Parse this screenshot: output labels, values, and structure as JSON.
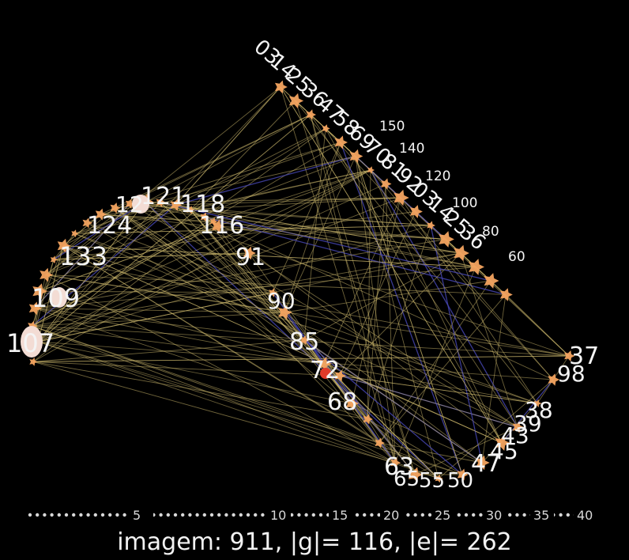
{
  "caption": {
    "prefix": "imagem: ",
    "image_number": "911",
    "g_label": ", |g|= ",
    "g_value": "116",
    "e_label": ", |e|= ",
    "e_value": "262"
  },
  "scale_ticks": [
    "5",
    "10",
    "15",
    "20",
    "25",
    "30",
    "35",
    "40"
  ],
  "node_labels": [
    "107",
    "109",
    "133",
    "124",
    "12",
    "121",
    "118",
    "116",
    "91",
    "90",
    "85",
    "72",
    "68",
    "63",
    "65",
    "55",
    "50",
    "47",
    "45",
    "43",
    "39",
    "38",
    "37",
    "98"
  ],
  "time_labels": [
    "150",
    "140",
    "120",
    "100",
    "80",
    "60"
  ],
  "colors": {
    "background": "#000000",
    "node_fill": "#f4a460",
    "edge_yellow": "#c8b46a",
    "edge_blue": "#4848b8",
    "highlight": "#e03a2a",
    "text": "#f2f2f2"
  }
}
